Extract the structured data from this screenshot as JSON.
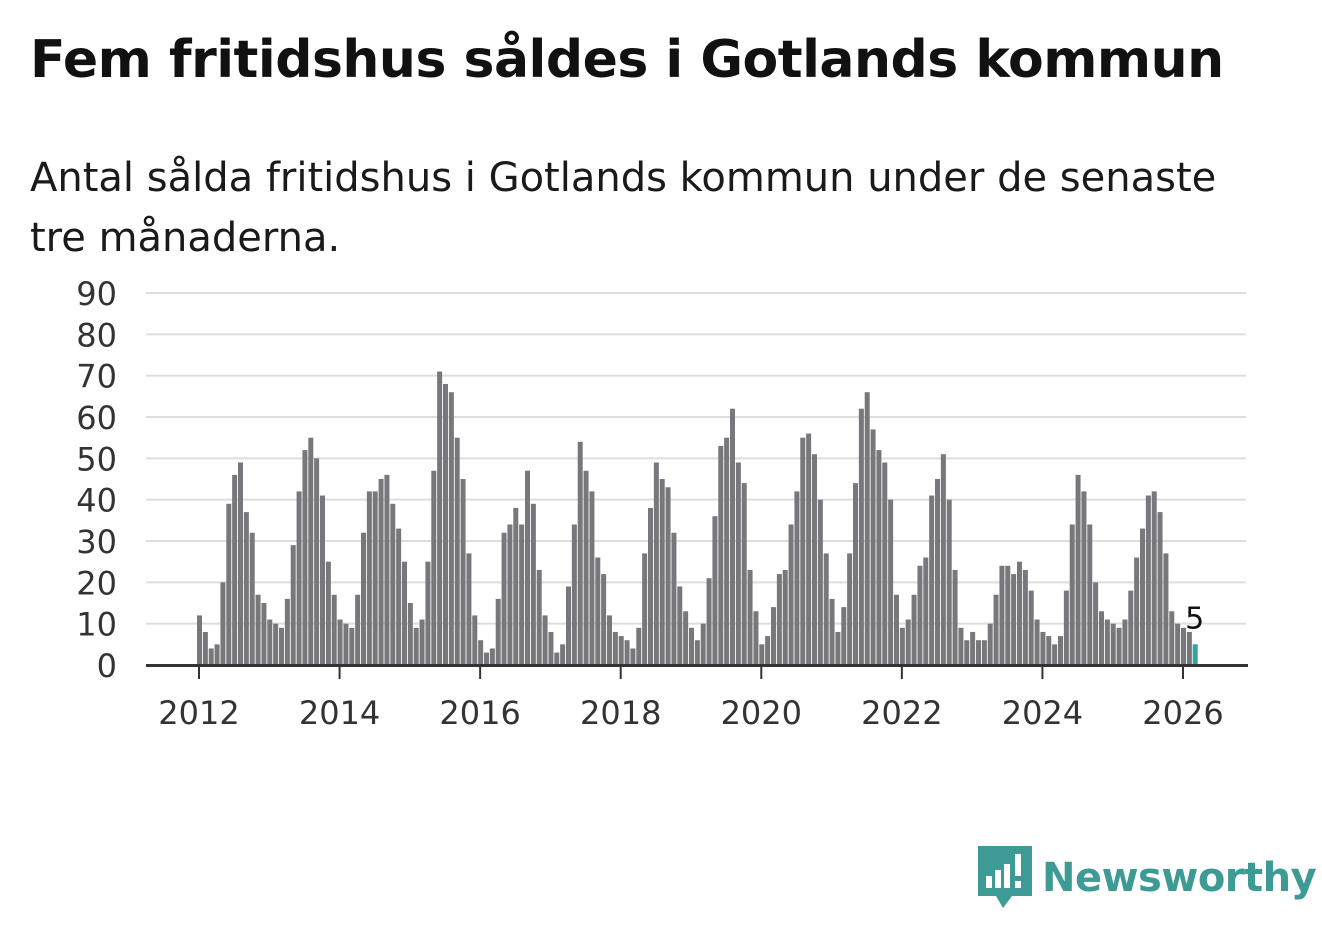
{
  "header": {
    "title": "Fem fritidshus såldes i Gotlands kommun",
    "subtitle": "Antal sålda fritidshus i Gotlands kommun under de senaste tre månaderna."
  },
  "brand": {
    "name": "Newsworthy",
    "icon": "newsworthy-logo-icon",
    "color": "#3e9a94"
  },
  "chart_data": {
    "type": "bar",
    "title": "",
    "xlabel": "",
    "ylabel": "",
    "ylim": [
      0,
      90
    ],
    "yticks": [
      0,
      10,
      20,
      30,
      40,
      50,
      60,
      70,
      80,
      90
    ],
    "xtick_labels": [
      "2012",
      "2014",
      "2016",
      "2018",
      "2020",
      "2022",
      "2024",
      "2026"
    ],
    "grid": true,
    "bar_color": "#78777c",
    "highlight_color": "#2ea3a0",
    "start": "2012-01",
    "end": "2026-02",
    "values": [
      12,
      8,
      4,
      5,
      20,
      39,
      46,
      49,
      37,
      32,
      17,
      15,
      11,
      10,
      9,
      16,
      29,
      42,
      52,
      55,
      50,
      41,
      25,
      17,
      11,
      10,
      9,
      17,
      32,
      42,
      42,
      45,
      46,
      39,
      33,
      25,
      15,
      9,
      11,
      25,
      47,
      71,
      68,
      66,
      55,
      45,
      27,
      12,
      6,
      3,
      4,
      16,
      32,
      34,
      38,
      34,
      47,
      39,
      23,
      12,
      8,
      3,
      5,
      19,
      34,
      54,
      47,
      42,
      26,
      22,
      12,
      8,
      7,
      6,
      4,
      9,
      27,
      38,
      49,
      45,
      43,
      32,
      19,
      13,
      9,
      6,
      10,
      21,
      36,
      53,
      55,
      62,
      49,
      44,
      23,
      13,
      5,
      7,
      14,
      22,
      23,
      34,
      42,
      55,
      56,
      51,
      40,
      27,
      16,
      8,
      14,
      27,
      44,
      62,
      66,
      57,
      52,
      49,
      40,
      17,
      9,
      11,
      17,
      24,
      26,
      41,
      45,
      51,
      40,
      23,
      9,
      6,
      8,
      6,
      6,
      10,
      17,
      24,
      24,
      22,
      25,
      23,
      18,
      11,
      8,
      7,
      5,
      7,
      18,
      34,
      46,
      42,
      34,
      20,
      13,
      11,
      10,
      9,
      11,
      18,
      26,
      33,
      41,
      42,
      37,
      27,
      13,
      10,
      9,
      8,
      5
    ],
    "highlight": {
      "label": "5",
      "value": 5
    }
  }
}
